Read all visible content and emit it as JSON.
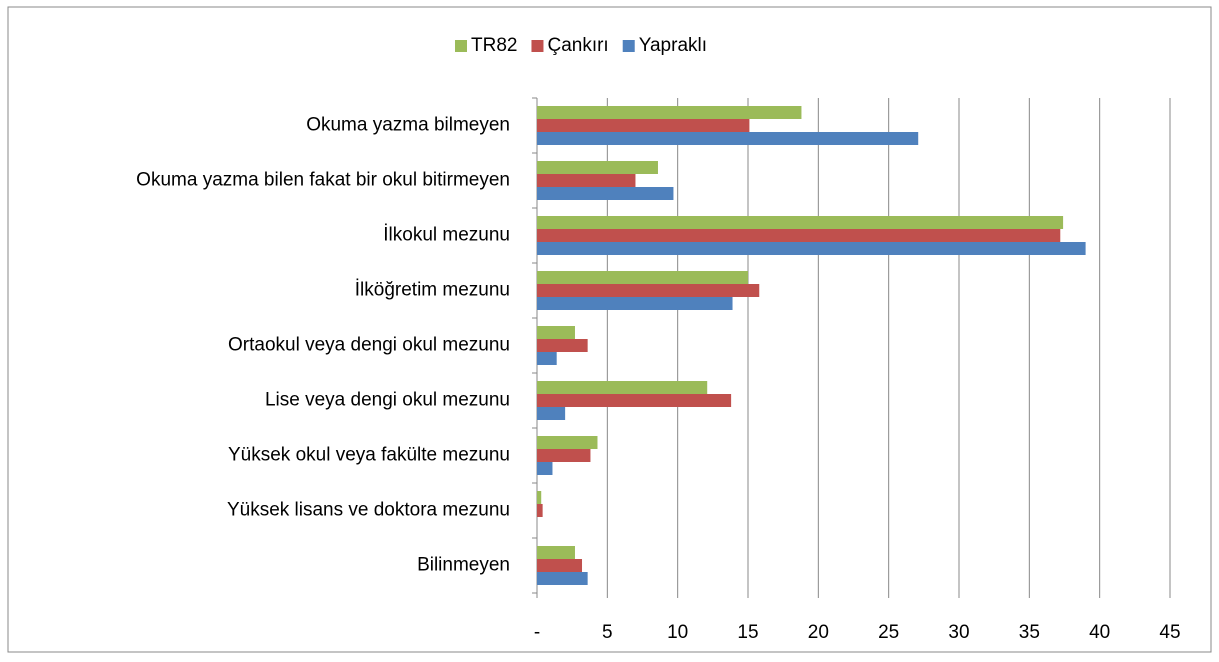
{
  "chart_data": {
    "type": "hbar",
    "categories": [
      "Okuma yazma bilmeyen",
      "Okuma yazma bilen fakat bir okul bitirmeyen",
      "İlkokul mezunu",
      "İlköğretim mezunu",
      "Ortaokul veya dengi okul mezunu",
      "Lise veya dengi okul mezunu",
      "Yüksek okul veya fakülte mezunu",
      "Yüksek lisans ve doktora mezunu",
      "Bilinmeyen"
    ],
    "series": [
      {
        "name": "TR82",
        "color": "#9bbb59",
        "values": [
          18.8,
          8.6,
          37.4,
          15.0,
          2.7,
          12.1,
          4.3,
          0.3,
          2.7
        ]
      },
      {
        "name": "Çankırı",
        "color": "#c0504d",
        "values": [
          15.1,
          7.0,
          37.2,
          15.8,
          3.6,
          13.8,
          3.8,
          0.4,
          3.2
        ]
      },
      {
        "name": "Yapraklı",
        "color": "#4f81bd",
        "values": [
          27.1,
          9.7,
          39.0,
          13.9,
          1.4,
          2.0,
          1.1,
          0,
          3.6
        ]
      }
    ],
    "xlim": [
      0,
      45
    ],
    "xticks": [
      {
        "value": 0,
        "label": "-"
      },
      5,
      10,
      15,
      20,
      25,
      30,
      35,
      40,
      45
    ],
    "grid": true,
    "legend": "top"
  }
}
